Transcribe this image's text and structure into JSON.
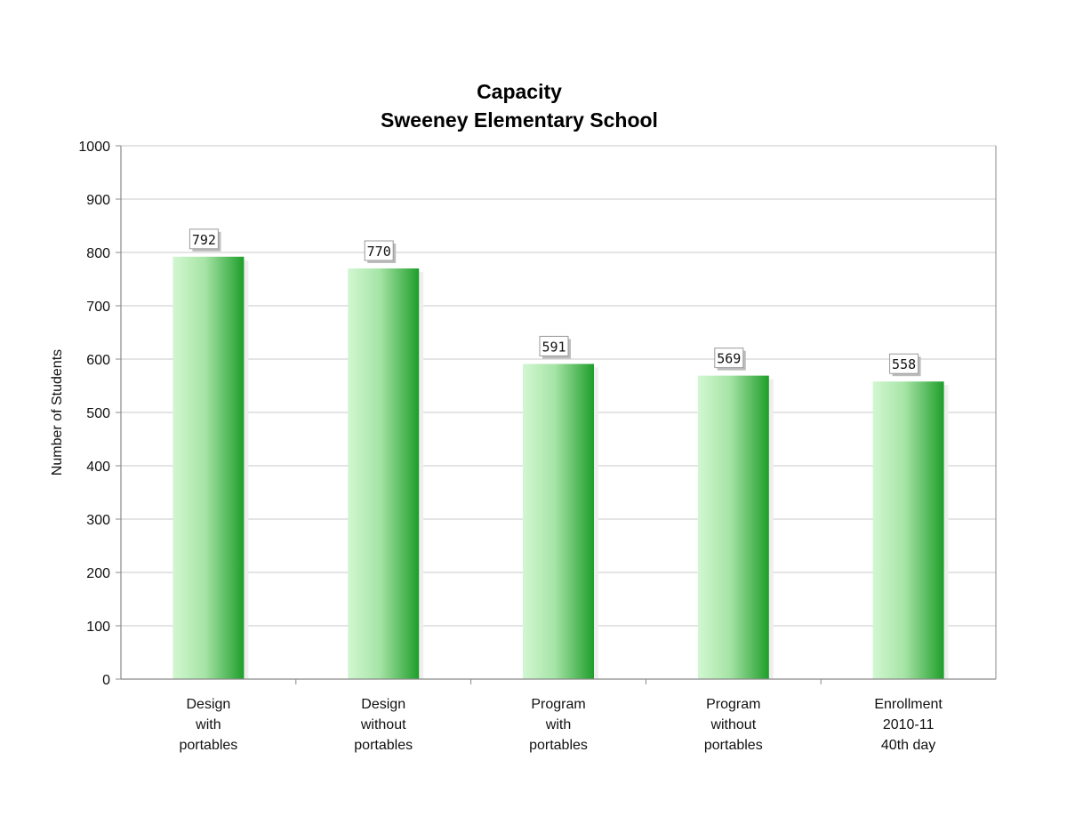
{
  "chart_data": {
    "type": "bar",
    "title": [
      "Capacity",
      "Sweeney Elementary School"
    ],
    "ylabel": "Number of Students",
    "xlabel": "",
    "ylim": [
      0,
      1000
    ],
    "yticks": [
      0,
      100,
      200,
      300,
      400,
      500,
      600,
      700,
      800,
      900,
      1000
    ],
    "grid": true,
    "legend": "none",
    "categories": [
      [
        "Design",
        "with",
        "portables"
      ],
      [
        "Design",
        "without",
        "portables"
      ],
      [
        "Program",
        "with",
        "portables"
      ],
      [
        "Program",
        "without",
        "portables"
      ],
      [
        "Enrollment",
        "2010-11",
        "40th day"
      ]
    ],
    "values": [
      792,
      770,
      591,
      569,
      558
    ],
    "data_labels": [
      "792",
      "770",
      "591",
      "569",
      "558"
    ],
    "colors": {
      "bar_light": "#d2f7d2",
      "bar_dark": "#1e9e2a",
      "grid": "#c8c8c8",
      "axis": "#888888"
    }
  }
}
